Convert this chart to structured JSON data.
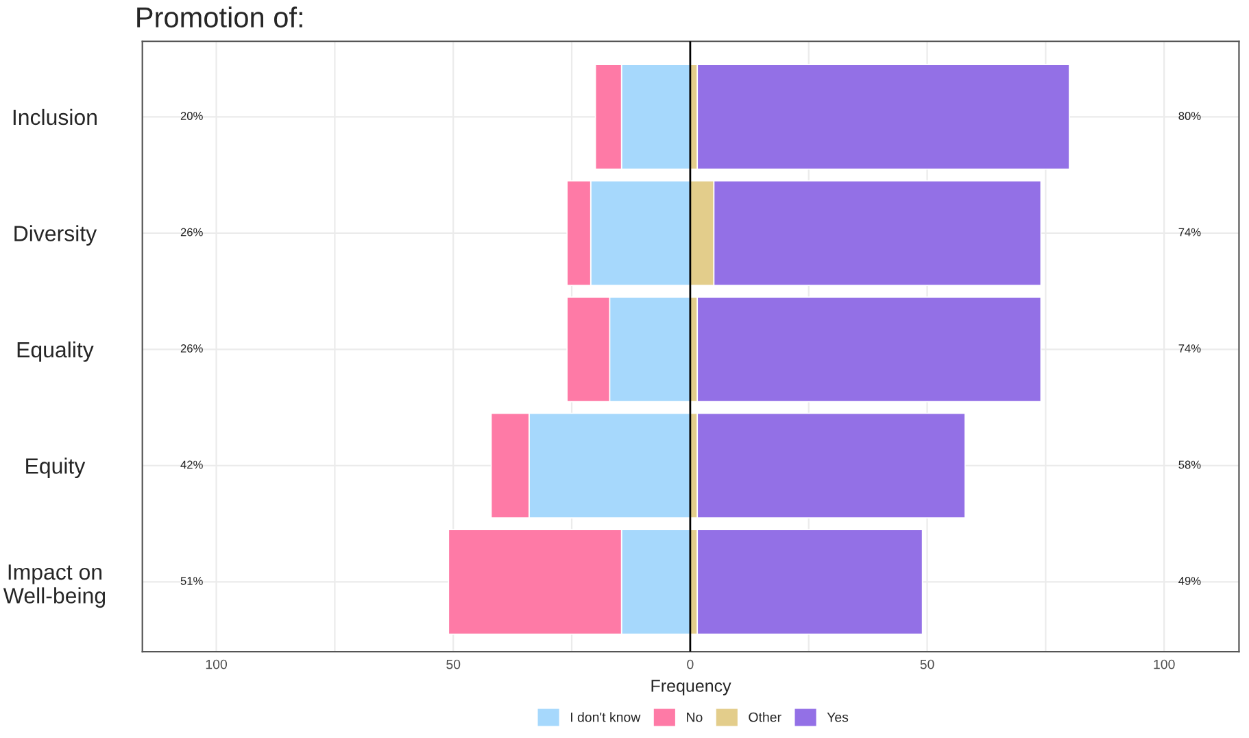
{
  "chart_data": {
    "type": "bar",
    "orientation": "horizontal",
    "stacked": true,
    "title": "Promotion of:",
    "xlabel": "Frequency",
    "categories": [
      "Inclusion",
      "Diversity",
      "Equality",
      "Equity",
      "Impact on\nWell-being"
    ],
    "series": [
      {
        "name": "I don't know",
        "color": "#a6d8fc",
        "values": [
          -14.5,
          -21,
          -17,
          -34,
          -14.5
        ]
      },
      {
        "name": "No",
        "color": "#fe7aa6",
        "values": [
          -5.5,
          -5,
          -9,
          -8,
          -36.5
        ]
      },
      {
        "name": "Other",
        "color": "#e3cd8b",
        "values": [
          1.5,
          5,
          1.5,
          1.5,
          1.5
        ]
      },
      {
        "name": "Yes",
        "color": "#9370e6",
        "values": [
          78.5,
          69,
          72.5,
          56.5,
          47.5
        ]
      }
    ],
    "xlim": [
      -115.6,
      115.8
    ],
    "xticks": [
      {
        "value": -100,
        "label": "100"
      },
      {
        "value": -75,
        "label": null
      },
      {
        "value": -50,
        "label": "50"
      },
      {
        "value": -25,
        "label": null
      },
      0,
      {
        "value": 25,
        "label": null
      },
      50,
      {
        "value": 75,
        "label": null
      },
      100
    ],
    "ref_lines": [
      {
        "axis": "x",
        "value": 0,
        "color": "#000000"
      }
    ],
    "annotations": [
      "20%",
      "80%",
      "26%",
      "74%",
      "26%",
      "74%",
      "42%",
      "58%",
      "51%",
      "49%"
    ],
    "grid": true,
    "legend": "bottom"
  }
}
